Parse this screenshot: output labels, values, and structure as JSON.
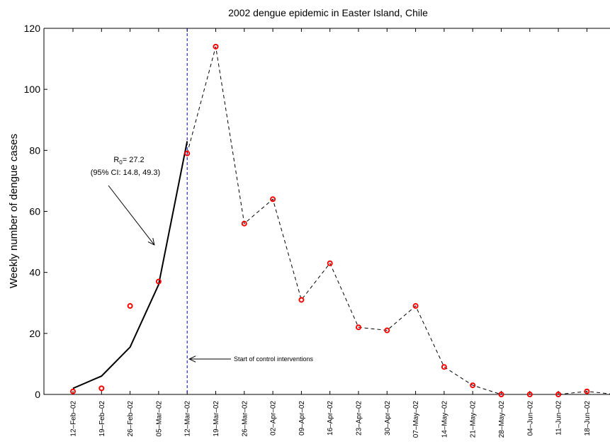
{
  "chart_data": {
    "type": "line",
    "title": "2002 dengue epidemic in Easter Island, Chile",
    "xlabel": "",
    "ylabel": "Weekly number of dengue cases",
    "ylim": [
      0,
      120
    ],
    "yticks": [
      0,
      20,
      40,
      60,
      80,
      100,
      120
    ],
    "categories": [
      "12–Feb–02",
      "19–Feb–02",
      "26–Feb–02",
      "05–Mar–02",
      "12–Mar–02",
      "19–Mar–02",
      "26–Mar–02",
      "02–Apr–02",
      "09–Apr–02",
      "16–Apr–02",
      "23–Apr–02",
      "30–Apr–02",
      "07–May–02",
      "14–May–02",
      "21–May–02",
      "28–May–02",
      "04–Jun–02",
      "11–Jun–02",
      "18–Jun–02"
    ],
    "grid": false,
    "series": [
      {
        "kind": "observed",
        "marker": "circle",
        "color": "#ff0000",
        "x": [
          0,
          1,
          2,
          3,
          4,
          5,
          6,
          7,
          8,
          9,
          10,
          11,
          12,
          13,
          14,
          15,
          16,
          17,
          18
        ],
        "values": [
          1,
          2,
          29,
          37,
          79,
          114,
          56,
          64,
          31,
          43,
          22,
          21,
          29,
          9,
          3,
          0,
          0,
          0,
          1
        ]
      },
      {
        "kind": "model-fit",
        "style": "solid",
        "color": "#000000",
        "x": [
          0,
          1,
          2,
          3,
          4
        ],
        "values": [
          2,
          6,
          15.5,
          36,
          83
        ]
      },
      {
        "kind": "epidemic-curve",
        "style": "dashed",
        "color": "#000000",
        "x": [
          4,
          5,
          6,
          7,
          8,
          9,
          10,
          11,
          12,
          13,
          14,
          15,
          16,
          17,
          18,
          19
        ],
        "values": [
          79,
          114,
          56,
          64,
          31,
          43,
          22,
          21,
          29,
          9,
          3,
          0,
          0,
          0,
          1,
          0
        ]
      }
    ],
    "control_start": {
      "x": 4,
      "color": "#0000cc",
      "label": "Start of control interventions"
    },
    "annotation": {
      "r0_symbol": "R",
      "r0_subscript": "0",
      "r0_value": "= 27.2",
      "ci_text": "(95% CI: 14.8, 49.3)",
      "arrow_to": [
        2.85,
        49
      ]
    }
  }
}
